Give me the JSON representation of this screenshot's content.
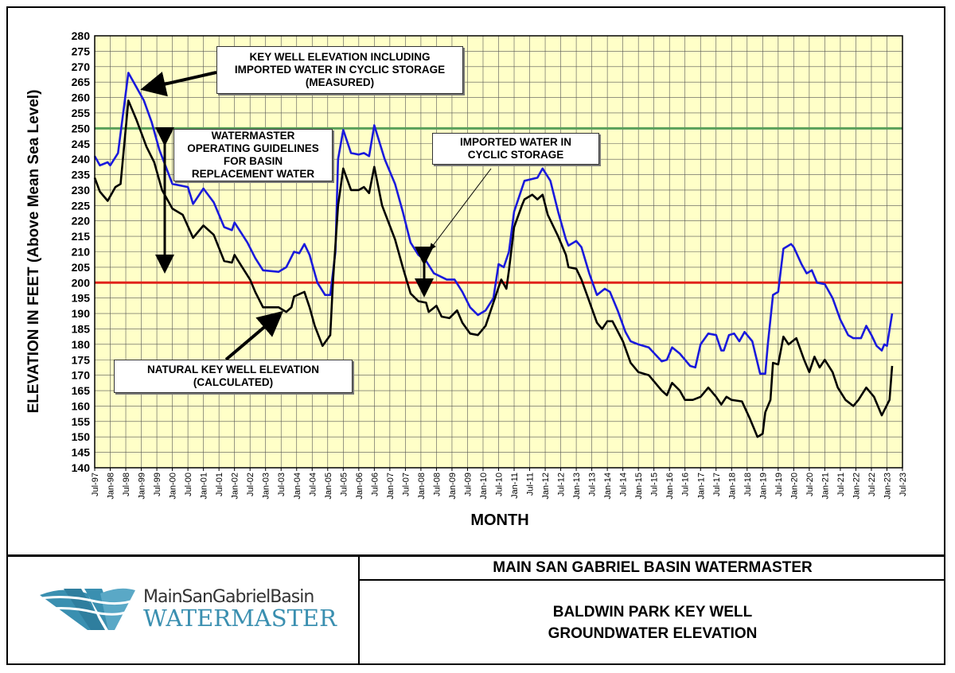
{
  "chart_data": {
    "type": "line",
    "xlabel": "MONTH",
    "ylabel": "ELEVATION IN FEET (Above Mean Sea Level)",
    "ylim": [
      140,
      280
    ],
    "ytick_step": 5,
    "xlim": [
      "1997-07",
      "2023-07"
    ],
    "x_tick_labels": [
      "Jul-97",
      "Jan-98",
      "Jul-98",
      "Jan-99",
      "Jul-99",
      "Jan-00",
      "Jul-00",
      "Jan-01",
      "Jul-01",
      "Jan-02",
      "Jul-02",
      "Jan-03",
      "Jul-03",
      "Jan-04",
      "Jul-04",
      "Jan-05",
      "Jul-05",
      "Jan-06",
      "Jul-06",
      "Jan-07",
      "Jul-07",
      "Jan-08",
      "Jul-08",
      "Jan-09",
      "Jul-09",
      "Jan-10",
      "Jul-10",
      "Jan-11",
      "Jul-11",
      "Jan-12",
      "Jul-12",
      "Jan-13",
      "Jul-13",
      "Jan-14",
      "Jul-14",
      "Jan-15",
      "Jul-15",
      "Jan-16",
      "Jul-16",
      "Jan-17",
      "Jul-17",
      "Jan-18",
      "Jul-18",
      "Jan-19",
      "Jul-19",
      "Jan-20",
      "Jul-20",
      "Jan-21",
      "Jul-21",
      "Jan-22",
      "Jul-22",
      "Jan-23",
      "Jul-23"
    ],
    "grid": true,
    "background": "#ffffc8",
    "reference_lines": [
      {
        "value": 250,
        "color": "#5aa05a"
      },
      {
        "value": 200,
        "color": "#e0221a"
      }
    ],
    "series": [
      {
        "color": "#1a1adc",
        "points": [
          [
            "1997-07",
            241
          ],
          [
            "1997-09",
            238
          ],
          [
            "1997-12",
            239
          ],
          [
            "1998-01",
            238
          ],
          [
            "1998-04",
            242
          ],
          [
            "1998-08",
            268
          ],
          [
            "1999-02",
            259
          ],
          [
            "1999-05",
            252
          ],
          [
            "1999-08",
            243
          ],
          [
            "2000-01",
            232
          ],
          [
            "2000-07",
            231
          ],
          [
            "2000-09",
            225.5
          ],
          [
            "2001-01",
            230.5
          ],
          [
            "2001-05",
            226
          ],
          [
            "2001-09",
            218
          ],
          [
            "2001-12",
            217
          ],
          [
            "2002-01",
            219.5
          ],
          [
            "2002-06",
            213
          ],
          [
            "2002-09",
            208
          ],
          [
            "2002-12",
            204
          ],
          [
            "2003-06",
            203.5
          ],
          [
            "2003-09",
            205
          ],
          [
            "2003-12",
            210
          ],
          [
            "2004-02",
            209.5
          ],
          [
            "2004-04",
            212.5
          ],
          [
            "2004-06",
            209
          ],
          [
            "2004-09",
            200
          ],
          [
            "2004-12",
            196
          ],
          [
            "2005-02",
            196
          ],
          [
            "2005-04",
            210
          ],
          [
            "2005-05",
            240
          ],
          [
            "2005-07",
            249.5
          ],
          [
            "2005-10",
            242
          ],
          [
            "2006-01",
            241.5
          ],
          [
            "2006-03",
            242
          ],
          [
            "2006-05",
            241
          ],
          [
            "2006-07",
            251
          ],
          [
            "2006-11",
            240
          ],
          [
            "2007-03",
            232
          ],
          [
            "2007-06",
            223
          ],
          [
            "2007-09",
            213
          ],
          [
            "2007-12",
            209
          ],
          [
            "2008-03",
            207
          ],
          [
            "2008-06",
            203
          ],
          [
            "2008-11",
            201
          ],
          [
            "2009-02",
            201
          ],
          [
            "2009-05",
            197
          ],
          [
            "2009-08",
            192
          ],
          [
            "2009-11",
            189.5
          ],
          [
            "2010-02",
            191
          ],
          [
            "2010-05",
            195
          ],
          [
            "2010-07",
            206
          ],
          [
            "2010-09",
            205
          ],
          [
            "2010-11",
            210
          ],
          [
            "2011-01",
            223
          ],
          [
            "2011-03",
            228
          ],
          [
            "2011-05",
            233
          ],
          [
            "2011-10",
            234
          ],
          [
            "2011-12",
            237
          ],
          [
            "2012-03",
            233
          ],
          [
            "2012-06",
            223
          ],
          [
            "2012-09",
            214
          ],
          [
            "2012-10",
            212
          ],
          [
            "2013-01",
            213.5
          ],
          [
            "2013-03",
            211.5
          ],
          [
            "2013-06",
            203
          ],
          [
            "2013-09",
            196
          ],
          [
            "2013-12",
            198
          ],
          [
            "2014-02",
            197
          ],
          [
            "2014-05",
            191
          ],
          [
            "2014-08",
            184
          ],
          [
            "2014-10",
            181
          ],
          [
            "2015-01",
            180
          ],
          [
            "2015-05",
            179
          ],
          [
            "2015-10",
            174.5
          ],
          [
            "2015-12",
            175
          ],
          [
            "2016-02",
            179
          ],
          [
            "2016-05",
            177
          ],
          [
            "2016-09",
            173
          ],
          [
            "2016-11",
            172.5
          ],
          [
            "2017-01",
            180
          ],
          [
            "2017-04",
            183.5
          ],
          [
            "2017-07",
            183
          ],
          [
            "2017-09",
            178
          ],
          [
            "2017-10",
            178
          ],
          [
            "2017-12",
            183
          ],
          [
            "2018-02",
            183.5
          ],
          [
            "2018-04",
            181
          ],
          [
            "2018-06",
            184
          ],
          [
            "2018-09",
            181
          ],
          [
            "2018-11",
            174
          ],
          [
            "2018-12",
            170.5
          ],
          [
            "2019-02",
            170.5
          ],
          [
            "2019-03",
            180
          ],
          [
            "2019-05",
            196
          ],
          [
            "2019-07",
            197
          ],
          [
            "2019-09",
            211
          ],
          [
            "2019-12",
            212.5
          ],
          [
            "2020-01",
            211.5
          ],
          [
            "2020-04",
            206
          ],
          [
            "2020-06",
            203
          ],
          [
            "2020-08",
            204
          ],
          [
            "2020-10",
            200
          ],
          [
            "2021-01",
            199.5
          ],
          [
            "2021-04",
            195
          ],
          [
            "2021-07",
            188
          ],
          [
            "2021-10",
            183
          ],
          [
            "2021-12",
            182
          ],
          [
            "2022-03",
            182
          ],
          [
            "2022-05",
            186
          ],
          [
            "2022-07",
            183
          ],
          [
            "2022-09",
            179.5
          ],
          [
            "2022-11",
            178
          ],
          [
            "2022-12",
            180
          ],
          [
            "2023-01",
            179.5
          ],
          [
            "2023-03",
            190
          ]
        ]
      },
      {
        "color": "#000000",
        "points": [
          [
            "1997-07",
            234
          ],
          [
            "1997-09",
            229.5
          ],
          [
            "1997-12",
            226.5
          ],
          [
            "1998-03",
            231
          ],
          [
            "1998-05",
            232
          ],
          [
            "1998-08",
            259
          ],
          [
            "1998-11",
            253
          ],
          [
            "1999-03",
            244
          ],
          [
            "1999-06",
            239
          ],
          [
            "1999-09",
            230
          ],
          [
            "2000-01",
            224
          ],
          [
            "2000-05",
            222
          ],
          [
            "2000-09",
            214.5
          ],
          [
            "2001-01",
            218.5
          ],
          [
            "2001-05",
            215.5
          ],
          [
            "2001-09",
            207
          ],
          [
            "2001-12",
            206.5
          ],
          [
            "2002-01",
            209
          ],
          [
            "2002-04",
            205
          ],
          [
            "2002-07",
            201
          ],
          [
            "2002-09",
            197
          ],
          [
            "2002-12",
            192
          ],
          [
            "2003-06",
            192
          ],
          [
            "2003-09",
            190.5
          ],
          [
            "2003-11",
            192
          ],
          [
            "2003-12",
            195.5
          ],
          [
            "2004-04",
            197
          ],
          [
            "2004-06",
            192
          ],
          [
            "2004-08",
            186
          ],
          [
            "2004-11",
            179.5
          ],
          [
            "2005-02",
            183
          ],
          [
            "2005-03",
            200
          ],
          [
            "2005-05",
            225
          ],
          [
            "2005-07",
            237
          ],
          [
            "2005-10",
            230
          ],
          [
            "2006-01",
            230
          ],
          [
            "2006-03",
            231
          ],
          [
            "2006-05",
            229
          ],
          [
            "2006-07",
            237.5
          ],
          [
            "2006-10",
            225
          ],
          [
            "2007-03",
            214
          ],
          [
            "2007-06",
            205
          ],
          [
            "2007-09",
            196.5
          ],
          [
            "2007-12",
            194
          ],
          [
            "2008-03",
            193.5
          ],
          [
            "2008-04",
            190.5
          ],
          [
            "2008-07",
            192.5
          ],
          [
            "2008-09",
            189
          ],
          [
            "2008-12",
            188.5
          ],
          [
            "2009-03",
            191
          ],
          [
            "2009-05",
            187
          ],
          [
            "2009-08",
            183.5
          ],
          [
            "2009-11",
            183
          ],
          [
            "2010-02",
            186
          ],
          [
            "2010-06",
            196
          ],
          [
            "2010-08",
            201
          ],
          [
            "2010-10",
            198
          ],
          [
            "2010-11",
            204
          ],
          [
            "2011-01",
            218
          ],
          [
            "2011-04",
            225
          ],
          [
            "2011-05",
            227
          ],
          [
            "2011-08",
            228.5
          ],
          [
            "2011-10",
            227
          ],
          [
            "2011-12",
            228.5
          ],
          [
            "2012-02",
            222
          ],
          [
            "2012-06",
            215
          ],
          [
            "2012-09",
            209
          ],
          [
            "2012-10",
            205
          ],
          [
            "2013-01",
            204.5
          ],
          [
            "2013-03",
            201
          ],
          [
            "2013-06",
            194
          ],
          [
            "2013-09",
            187
          ],
          [
            "2013-11",
            185
          ],
          [
            "2014-01",
            187.5
          ],
          [
            "2014-03",
            187.5
          ],
          [
            "2014-07",
            181
          ],
          [
            "2014-10",
            174
          ],
          [
            "2015-01",
            171
          ],
          [
            "2015-05",
            170
          ],
          [
            "2015-10",
            165
          ],
          [
            "2015-12",
            163.5
          ],
          [
            "2016-02",
            167.5
          ],
          [
            "2016-05",
            165
          ],
          [
            "2016-07",
            162
          ],
          [
            "2016-10",
            162
          ],
          [
            "2017-01",
            163
          ],
          [
            "2017-04",
            166
          ],
          [
            "2017-07",
            163
          ],
          [
            "2017-09",
            160.5
          ],
          [
            "2017-11",
            163
          ],
          [
            "2018-01",
            162
          ],
          [
            "2018-05",
            161.5
          ],
          [
            "2018-08",
            156
          ],
          [
            "2018-10",
            152
          ],
          [
            "2018-11",
            150
          ],
          [
            "2019-01",
            151
          ],
          [
            "2019-02",
            158
          ],
          [
            "2019-04",
            162
          ],
          [
            "2019-05",
            174
          ],
          [
            "2019-07",
            173.5
          ],
          [
            "2019-09",
            182.5
          ],
          [
            "2019-11",
            180
          ],
          [
            "2020-02",
            182
          ],
          [
            "2020-05",
            175
          ],
          [
            "2020-07",
            171
          ],
          [
            "2020-09",
            176
          ],
          [
            "2020-11",
            172.5
          ],
          [
            "2021-01",
            175
          ],
          [
            "2021-04",
            171
          ],
          [
            "2021-06",
            166
          ],
          [
            "2021-09",
            162
          ],
          [
            "2021-12",
            160
          ],
          [
            "2022-02",
            162
          ],
          [
            "2022-05",
            166
          ],
          [
            "2022-08",
            163
          ],
          [
            "2022-11",
            157
          ],
          [
            "2023-02",
            162
          ],
          [
            "2023-03",
            173
          ]
        ]
      }
    ],
    "annotations": {
      "measured": "KEY WELL ELEVATION INCLUDING\nIMPORTED WATER IN CYCLIC STORAGE\n(MEASURED)",
      "guidelines": "WATERMASTER\nOPERATING GUIDELINES\nFOR BASIN\nREPLACEMENT WATER",
      "cyclic": "IMPORTED WATER IN\nCYCLIC STORAGE",
      "natural": "NATURAL KEY WELL ELEVATION\n(CALCULATED)"
    }
  },
  "footer": {
    "logo_line1": "MainSanGabrielBasin",
    "logo_line2": "WATERMASTER",
    "logo_color": "#3a8fb0",
    "organization": "MAIN SAN GABRIEL BASIN WATERMASTER",
    "title_line1": "BALDWIN PARK KEY WELL",
    "title_line2": "GROUNDWATER ELEVATION"
  }
}
